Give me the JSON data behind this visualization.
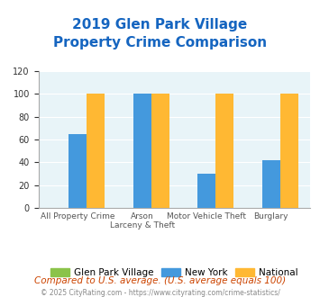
{
  "title_line1": "2019 Glen Park Village",
  "title_line2": "Property Crime Comparison",
  "title_color": "#1565c0",
  "categories": [
    "All Property Crime",
    "Arson\nLarceny & Theft",
    "Motor Vehicle Theft",
    "Burglary"
  ],
  "cat_labels_line1": [
    "All Property Crime",
    "Arson",
    "Motor Vehicle Theft",
    "Burglary"
  ],
  "cat_labels_line2": [
    "",
    "Larceny & Theft",
    "",
    ""
  ],
  "series": {
    "Glen Park Village": {
      "values": [
        0,
        0,
        0,
        0
      ],
      "color": "#8bc34a"
    },
    "New York": {
      "values": [
        65,
        100,
        30,
        42
      ],
      "color": "#4499dd"
    },
    "National": {
      "values": [
        100,
        100,
        100,
        100
      ],
      "color": "#ffb833"
    }
  },
  "ylim": [
    0,
    120
  ],
  "yticks": [
    0,
    20,
    40,
    60,
    80,
    100,
    120
  ],
  "bg_color": "#dce9f0",
  "plot_area_color": "#e8f4f8",
  "grid_color": "#ffffff",
  "footnote": "Compared to U.S. average. (U.S. average equals 100)",
  "footnote_color": "#cc4400",
  "copyright": "© 2025 CityRating.com - https://www.cityrating.com/crime-statistics/",
  "copyright_color": "#888888",
  "bar_width": 0.28,
  "group_positions": [
    0,
    1,
    2,
    3
  ]
}
